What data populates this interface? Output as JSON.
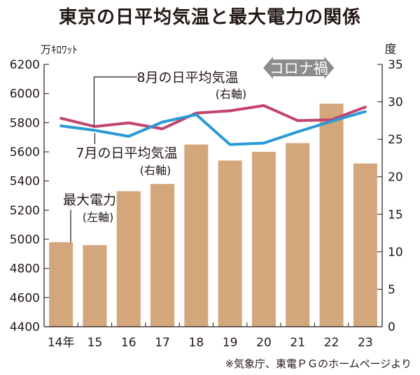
{
  "chart_data": {
    "type": "bar+line",
    "title": "東京の日平均気温と最大電力の関係",
    "source": "※気象庁、東電ＰＧのホームページより",
    "categories": [
      "14年",
      "15",
      "16",
      "17",
      "18",
      "19",
      "20",
      "21",
      "22",
      "23"
    ],
    "left_axis": {
      "unit": "万ｷﾛﾜｯﾄ",
      "min": 4400,
      "max": 6200,
      "ticks": [
        "4400",
        "4600",
        "4800",
        "5000",
        "5200",
        "5400",
        "5600",
        "5800",
        "6000",
        "6200"
      ]
    },
    "right_axis": {
      "unit": "度",
      "min": 0,
      "max": 35,
      "ticks": [
        "0",
        "5",
        "10",
        "15",
        "20",
        "25",
        "30",
        "35"
      ]
    },
    "bars": {
      "label": "最大電力",
      "axis_label": "(左軸)",
      "color": "#d4a67c",
      "values": [
        4980,
        4960,
        5330,
        5380,
        5650,
        5540,
        5600,
        5660,
        5930,
        5520
      ]
    },
    "series": [
      {
        "label": "8月の日平均気温",
        "axis_label": "(右軸)",
        "color": "#c2446e",
        "values": [
          27.8,
          26.7,
          27.2,
          26.4,
          28.5,
          28.8,
          29.5,
          27.5,
          27.6,
          29.3
        ]
      },
      {
        "label": "7月の日平均気温",
        "axis_label": "(右軸)",
        "color": "#2a9ad4",
        "values": [
          26.8,
          26.2,
          25.4,
          27.3,
          28.3,
          24.3,
          24.5,
          26.0,
          27.4,
          28.7
        ]
      }
    ],
    "annotation": {
      "text": "コロナ禍",
      "from_index": 5.98,
      "to_index": 8.08
    },
    "grid": false
  }
}
